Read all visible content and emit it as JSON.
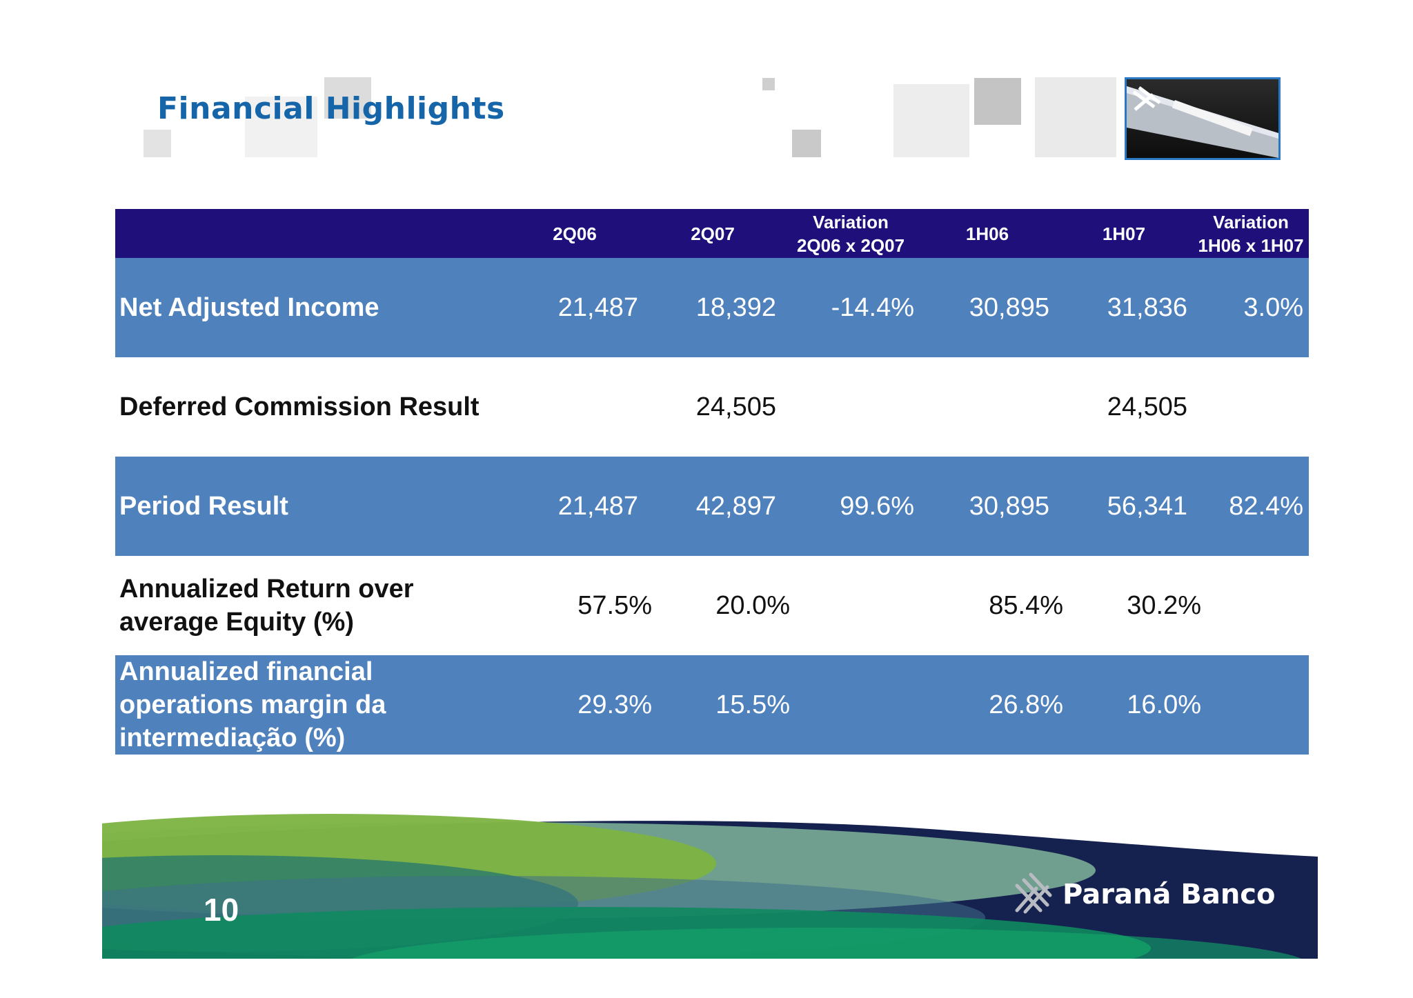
{
  "slide": {
    "title": "Financial Highlights",
    "page_number": "10",
    "brand": "Paraná Banco"
  },
  "table": {
    "columns": [
      "",
      "2Q06",
      "2Q07",
      "Variation 2Q06 x 2Q07",
      "1H06",
      "1H07",
      "Variation 1H06 x 1H07"
    ],
    "column_lines": [
      [
        ""
      ],
      [
        "2Q06"
      ],
      [
        "2Q07"
      ],
      [
        "Variation",
        "2Q06 x 2Q07"
      ],
      [
        "1H06"
      ],
      [
        "1H07"
      ],
      [
        "Variation",
        "1H06 x 1H07"
      ]
    ],
    "rows": [
      {
        "label_lines": [
          "Net Adjusted Income"
        ],
        "values": [
          "21,487",
          "18,392",
          "-14.4%",
          "30,895",
          "31,836",
          "3.0%"
        ]
      },
      {
        "label_lines": [
          "Deferred Commission Result"
        ],
        "values": [
          "",
          "24,505",
          "",
          "",
          "24,505",
          ""
        ]
      },
      {
        "label_lines": [
          "Period Result"
        ],
        "values": [
          "21,487",
          "42,897",
          "99.6%",
          "30,895",
          "56,341",
          "82.4%"
        ]
      },
      {
        "label_lines": [
          "Annualized Return over",
          "average Equity (%)"
        ],
        "values": [
          "57.5%",
          "20.0%",
          "",
          "85.4%",
          "30.2%",
          ""
        ]
      },
      {
        "label_lines": [
          "Annualized financial",
          "operations margin da",
          "intermediação (%)"
        ],
        "values": [
          "29.3%",
          "15.5%",
          "",
          "26.8%",
          "16.0%",
          ""
        ]
      }
    ]
  },
  "colors": {
    "title": "#1565a8",
    "header_bg": "#1e0f7a",
    "band_bg": "#4f81bd",
    "footer_navy": "#15214e"
  },
  "icons": {
    "logo": "parana-banco-logo-icon",
    "photo": "building-sign-photo"
  }
}
